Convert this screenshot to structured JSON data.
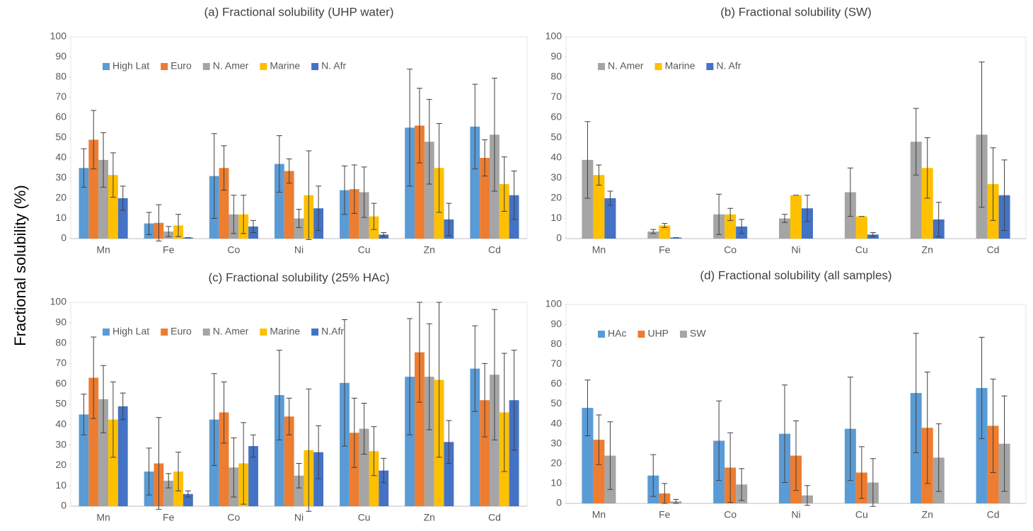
{
  "ylabel": "Fractional solubility (%)",
  "chart_data": [
    {
      "type": "bar",
      "title": "(a) Fractional solubility (UHP water)",
      "categories": [
        "Mn",
        "Fe",
        "Co",
        "Ni",
        "Cu",
        "Zn",
        "Cd"
      ],
      "series": [
        {
          "name": "High Lat",
          "color": "#5b9bd5",
          "values": [
            35,
            7.5,
            31,
            37,
            24,
            55,
            55.5
          ],
          "errors": [
            9.5,
            5.5,
            21,
            14,
            12,
            29,
            21
          ]
        },
        {
          "name": "Euro",
          "color": "#ed7d31",
          "values": [
            49,
            7.8,
            35,
            33.5,
            24.5,
            56,
            40
          ],
          "errors": [
            14.5,
            9,
            11,
            6,
            12,
            18.5,
            9
          ]
        },
        {
          "name": "N. Amer",
          "color": "#a5a5a5",
          "values": [
            39,
            3.5,
            12,
            10,
            23,
            48,
            51.5
          ],
          "errors": [
            13.5,
            2.5,
            9.5,
            4.5,
            12.5,
            21,
            28
          ]
        },
        {
          "name": "Marine",
          "color": "#ffc000",
          "values": [
            31.5,
            6.5,
            12,
            21.5,
            11,
            35,
            27
          ],
          "errors": [
            11,
            5.5,
            9.5,
            22,
            6.5,
            22,
            13.5
          ]
        },
        {
          "name": "N. Afr",
          "color": "#4472c4",
          "values": [
            20,
            0.5,
            6,
            15,
            2,
            9.5,
            21.5
          ],
          "errors": [
            6,
            0,
            3,
            11,
            1,
            8,
            12
          ]
        }
      ],
      "ylim": [
        0,
        100
      ],
      "yticks": [
        0,
        10,
        20,
        30,
        40,
        50,
        60,
        70,
        80,
        90,
        100
      ],
      "grid": false,
      "legend": "upper left"
    },
    {
      "type": "bar",
      "title": "(b) Fractional solubility (SW)",
      "categories": [
        "Mn",
        "Fe",
        "Co",
        "Ni",
        "Cu",
        "Zn",
        "Cd"
      ],
      "series": [
        {
          "name": "N. Amer",
          "color": "#a5a5a5",
          "values": [
            39,
            3.5,
            12,
            10,
            23,
            48,
            51.5
          ],
          "errors": [
            19,
            1,
            10,
            2,
            12,
            16.5,
            36
          ]
        },
        {
          "name": "Marine",
          "color": "#ffc000",
          "values": [
            31.5,
            6.5,
            12,
            21.5,
            11,
            35,
            27
          ],
          "errors": [
            5,
            1,
            3,
            0,
            0,
            15,
            18
          ]
        },
        {
          "name": "N. Afr",
          "color": "#4472c4",
          "values": [
            20,
            0.5,
            6,
            15,
            2,
            9.5,
            21.5
          ],
          "errors": [
            3.5,
            0,
            3.5,
            6.5,
            1,
            8.5,
            17.5
          ]
        }
      ],
      "ylim": [
        0,
        100
      ],
      "yticks": [
        0,
        10,
        20,
        30,
        40,
        50,
        60,
        70,
        80,
        90,
        100
      ],
      "grid": false,
      "legend": "upper left"
    },
    {
      "type": "bar",
      "title": "(c) Fractional solubility (25% HAc)",
      "categories": [
        "Mn",
        "Fe",
        "Co",
        "Ni",
        "Cu",
        "Zn",
        "Cd"
      ],
      "series": [
        {
          "name": "High Lat",
          "color": "#5b9bd5",
          "values": [
            45,
            17,
            42.5,
            54.5,
            60.5,
            63.5,
            67.5
          ],
          "errors": [
            10,
            11.5,
            22.5,
            22,
            31,
            28.5,
            21
          ]
        },
        {
          "name": "Euro",
          "color": "#ed7d31",
          "values": [
            63,
            21,
            46,
            44,
            36,
            75.5,
            52
          ],
          "errors": [
            20,
            22.5,
            15,
            9,
            17,
            24.5,
            18
          ]
        },
        {
          "name": "N. Amer",
          "color": "#a5a5a5",
          "values": [
            52.5,
            12.5,
            19,
            15,
            38,
            63.5,
            64.5
          ],
          "errors": [
            16.5,
            3.5,
            14.5,
            6,
            12.5,
            26,
            32
          ]
        },
        {
          "name": "Marine",
          "color": "#ffc000",
          "values": [
            42.5,
            17,
            21,
            27.5,
            27,
            62,
            46
          ],
          "errors": [
            18.5,
            9.5,
            20,
            30,
            12,
            38,
            29
          ]
        },
        {
          "name": "N.Afr",
          "color": "#4472c4",
          "values": [
            49,
            6,
            29.5,
            26.5,
            17.5,
            31.5,
            52
          ],
          "errors": [
            6.5,
            1.5,
            5.5,
            13,
            6,
            10.5,
            24.5
          ]
        }
      ],
      "ylim": [
        0,
        100
      ],
      "yticks": [
        0,
        10,
        20,
        30,
        40,
        50,
        60,
        70,
        80,
        90,
        100
      ],
      "grid": false,
      "legend": "upper left"
    },
    {
      "type": "bar",
      "title": "(d) Fractional solubility (all samples)",
      "categories": [
        "Mn",
        "Fe",
        "Co",
        "Ni",
        "Cu",
        "Zn",
        "Cd"
      ],
      "series": [
        {
          "name": "HAc",
          "color": "#5b9bd5",
          "values": [
            48,
            14,
            31.5,
            35,
            37.5,
            55.5,
            58
          ],
          "errors": [
            14,
            10.5,
            20,
            24.5,
            26,
            30,
            25.5
          ]
        },
        {
          "name": "UHP",
          "color": "#ed7d31",
          "values": [
            32,
            5,
            18,
            24,
            15.5,
            38,
            39
          ],
          "errors": [
            12.5,
            5,
            17.5,
            17.5,
            13,
            28,
            23.5
          ]
        },
        {
          "name": "SW",
          "color": "#a5a5a5",
          "values": [
            24,
            1,
            9.5,
            4,
            10.5,
            23,
            30
          ],
          "errors": [
            17,
            1,
            8,
            5,
            12,
            17,
            24
          ]
        }
      ],
      "ylim": [
        0,
        100
      ],
      "yticks": [
        0,
        10,
        20,
        30,
        40,
        50,
        60,
        70,
        80,
        90,
        100
      ],
      "grid": false,
      "legend": "upper left"
    }
  ]
}
